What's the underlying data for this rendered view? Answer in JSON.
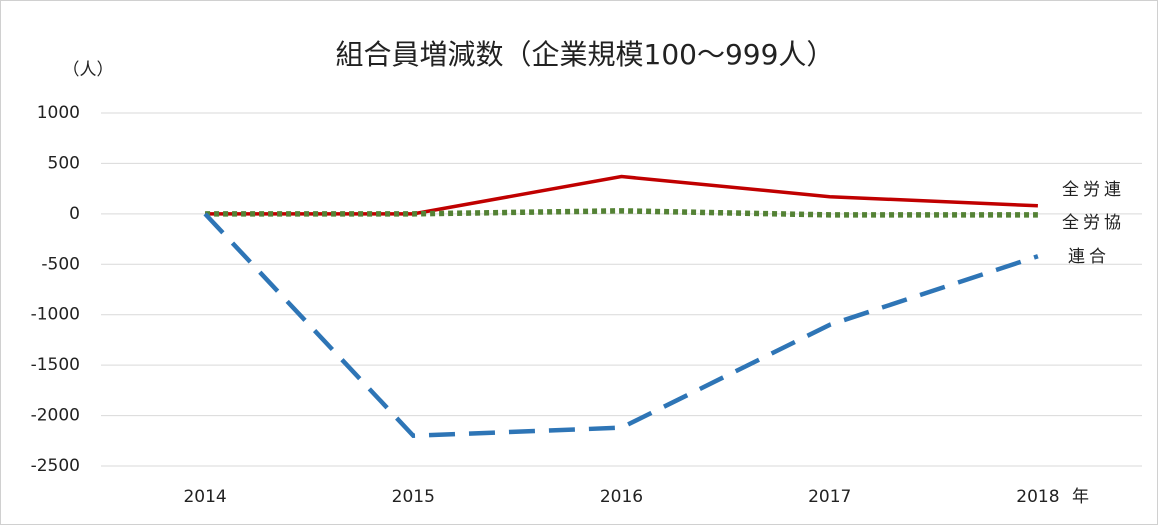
{
  "chart_data": {
    "type": "line",
    "title": "組合員増減数（企業規模100～999人）",
    "y_axis_label": "（人）",
    "x_axis_label": "年",
    "categories": [
      "2014",
      "2015",
      "2016",
      "2017",
      "2018"
    ],
    "series": [
      {
        "name": "全労連",
        "color": "#c00000",
        "style": "solid",
        "values": [
          0,
          0,
          370,
          170,
          80
        ]
      },
      {
        "name": "全労協",
        "color": "#548235",
        "style": "dotted",
        "values": [
          0,
          0,
          30,
          -10,
          -10
        ]
      },
      {
        "name": "連合",
        "color": "#2e75b6",
        "style": "dashed",
        "values": [
          0,
          -2200,
          -2120,
          -1100,
          -420
        ]
      }
    ],
    "ylim": [
      -2500,
      1000
    ],
    "yticks": [
      -2500,
      -2000,
      -1500,
      -1000,
      -500,
      0,
      500,
      1000
    ],
    "grid": true
  }
}
